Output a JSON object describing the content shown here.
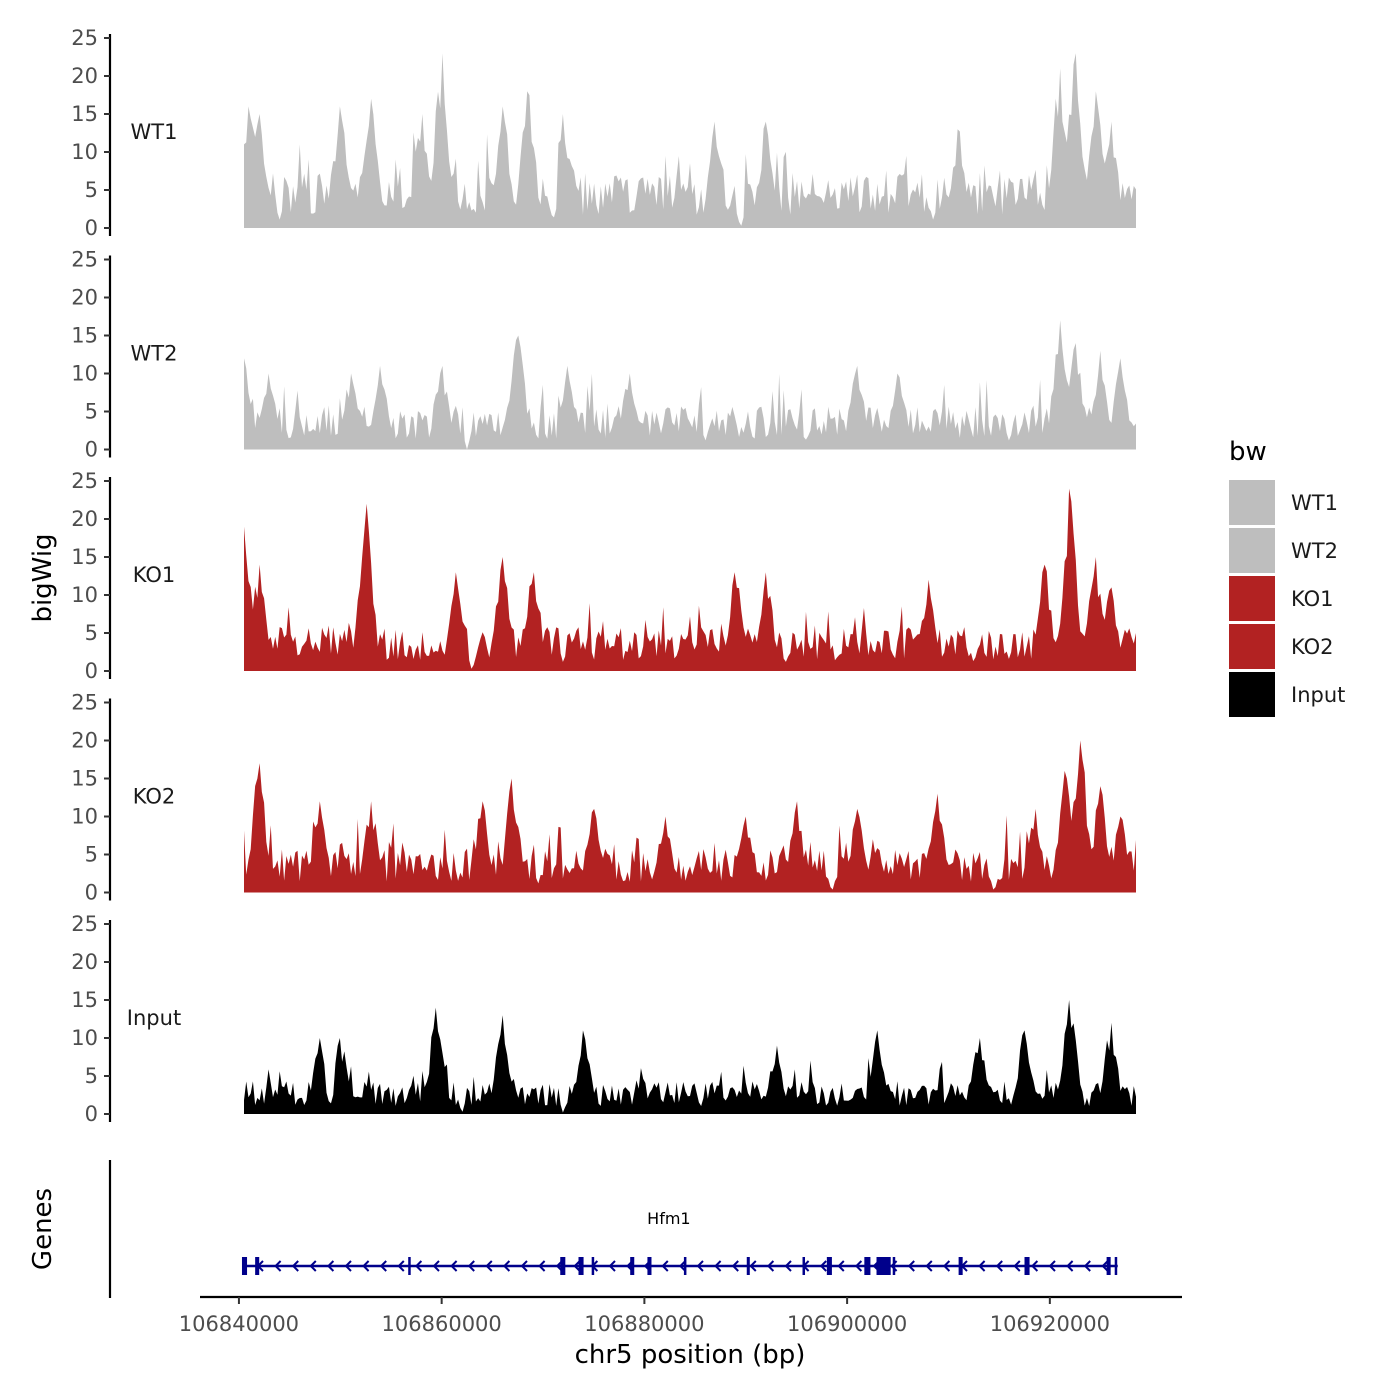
{
  "chart_data": {
    "type": "area",
    "title": "",
    "xlabel": "chr5 position (bp)",
    "ylabel": "bigWig",
    "genes_panel_label": "Genes",
    "xlim": [
      106838000,
      106932000
    ],
    "x_data_range": [
      106840500,
      106928500
    ],
    "ylim": [
      0,
      25
    ],
    "x_ticks": [
      106840000,
      106860000,
      106880000,
      106900000,
      106920000
    ],
    "x_tick_labels": [
      "106840000",
      "106860000",
      "106880000",
      "106900000",
      "106920000"
    ],
    "y_ticks": [
      0,
      5,
      10,
      15,
      20,
      25
    ],
    "y_tick_labels": [
      "0",
      "5",
      "10",
      "15",
      "20",
      "25"
    ],
    "grid": false,
    "legend": {
      "title": "bw",
      "position": "right",
      "entries": [
        {
          "label": "WT1",
          "color": "#bebebe"
        },
        {
          "label": "WT2",
          "color": "#bebebe"
        },
        {
          "label": "KO1",
          "color": "#b22222"
        },
        {
          "label": "KO2",
          "color": "#b22222"
        },
        {
          "label": "Input",
          "color": "#000000"
        }
      ]
    },
    "series": [
      {
        "name": "WT1",
        "color": "#bebebe",
        "baseline": 5,
        "peaks": [
          [
            106841000,
            16
          ],
          [
            106842000,
            15
          ],
          [
            106850000,
            16
          ],
          [
            106853000,
            17
          ],
          [
            106858000,
            15
          ],
          [
            106860000,
            23
          ],
          [
            106866000,
            16
          ],
          [
            106868500,
            18
          ],
          [
            106872000,
            15
          ],
          [
            106887000,
            14
          ],
          [
            106892000,
            14
          ],
          [
            106911000,
            13
          ],
          [
            106921000,
            21
          ],
          [
            106922500,
            23
          ],
          [
            106924500,
            18
          ],
          [
            106926000,
            14
          ]
        ],
        "dips": [
          [
            106844000,
            1
          ],
          [
            106863000,
            2
          ],
          [
            106871000,
            1
          ],
          [
            106889500,
            0
          ],
          [
            106908500,
            1
          ]
        ]
      },
      {
        "name": "WT2",
        "color": "#bebebe",
        "baseline": 4,
        "peaks": [
          [
            106840500,
            12
          ],
          [
            106843000,
            10
          ],
          [
            106851000,
            10
          ],
          [
            106854000,
            11
          ],
          [
            106860000,
            11
          ],
          [
            106867500,
            15
          ],
          [
            106872500,
            11
          ],
          [
            106878500,
            10
          ],
          [
            106901000,
            11
          ],
          [
            106905000,
            10
          ],
          [
            106921000,
            17
          ],
          [
            106922500,
            14
          ],
          [
            106925000,
            13
          ],
          [
            106927000,
            12
          ]
        ],
        "dips": [
          [
            106845000,
            1
          ],
          [
            106862500,
            0
          ],
          [
            106886000,
            1
          ],
          [
            106896000,
            1
          ],
          [
            106916000,
            1
          ]
        ]
      },
      {
        "name": "KO1",
        "color": "#b22222",
        "baseline": 4,
        "peaks": [
          [
            106840500,
            19
          ],
          [
            106842000,
            14
          ],
          [
            106852500,
            22
          ],
          [
            106861500,
            13
          ],
          [
            106866000,
            15
          ],
          [
            106869000,
            13
          ],
          [
            106889000,
            13
          ],
          [
            106892000,
            13
          ],
          [
            106908000,
            12
          ],
          [
            106919500,
            14
          ],
          [
            106922000,
            24
          ],
          [
            106924500,
            15
          ],
          [
            106926000,
            11
          ]
        ],
        "dips": [
          [
            106863000,
            0
          ],
          [
            106872000,
            1
          ],
          [
            106894000,
            1
          ],
          [
            106912500,
            1
          ]
        ]
      },
      {
        "name": "KO2",
        "color": "#b22222",
        "baseline": 4,
        "peaks": [
          [
            106842000,
            17
          ],
          [
            106848000,
            12
          ],
          [
            106853000,
            12
          ],
          [
            106864000,
            12
          ],
          [
            106867000,
            15
          ],
          [
            106875000,
            11
          ],
          [
            106882000,
            10
          ],
          [
            106890000,
            10
          ],
          [
            106895000,
            12
          ],
          [
            106901000,
            11
          ],
          [
            106909000,
            13
          ],
          [
            106918500,
            11
          ],
          [
            106921500,
            16
          ],
          [
            106923000,
            20
          ],
          [
            106925000,
            14
          ],
          [
            106927000,
            10
          ]
        ],
        "dips": [
          [
            106869500,
            1
          ],
          [
            106878000,
            1
          ],
          [
            106898500,
            0
          ],
          [
            106914500,
            0
          ]
        ]
      },
      {
        "name": "Input",
        "color": "#000000",
        "baseline": 3,
        "peaks": [
          [
            106848000,
            10
          ],
          [
            106850000,
            10
          ],
          [
            106859500,
            14
          ],
          [
            106866000,
            13
          ],
          [
            106874000,
            11
          ],
          [
            106893000,
            9
          ],
          [
            106903000,
            11
          ],
          [
            106913000,
            10
          ],
          [
            106917500,
            11
          ],
          [
            106922000,
            15
          ],
          [
            106926000,
            12
          ]
        ],
        "dips": [
          [
            106849000,
            1
          ],
          [
            106862000,
            0
          ],
          [
            106872000,
            0
          ],
          [
            106899000,
            1
          ]
        ]
      }
    ],
    "gene": {
      "name": "Hfm1",
      "strand": "-",
      "start": 106840500,
      "end": 106926700,
      "color": "#00008b",
      "exons": [
        [
          106840300,
          106840800
        ],
        [
          106841600,
          106842000
        ],
        [
          106856700,
          106856900
        ],
        [
          106871700,
          106872200
        ],
        [
          106873500,
          106874000
        ],
        [
          106874800,
          106875000
        ],
        [
          106878600,
          106879000
        ],
        [
          106880300,
          106880700
        ],
        [
          106883900,
          106884100
        ],
        [
          106890100,
          106890400
        ],
        [
          106895600,
          106895800
        ],
        [
          106898000,
          106898500
        ],
        [
          106901700,
          106902300
        ],
        [
          106902900,
          106904300
        ],
        [
          106904500,
          106904700
        ],
        [
          106911000,
          106911400
        ],
        [
          106917500,
          106918000
        ],
        [
          106925600,
          106926000
        ],
        [
          106926400,
          106926600
        ]
      ]
    }
  }
}
